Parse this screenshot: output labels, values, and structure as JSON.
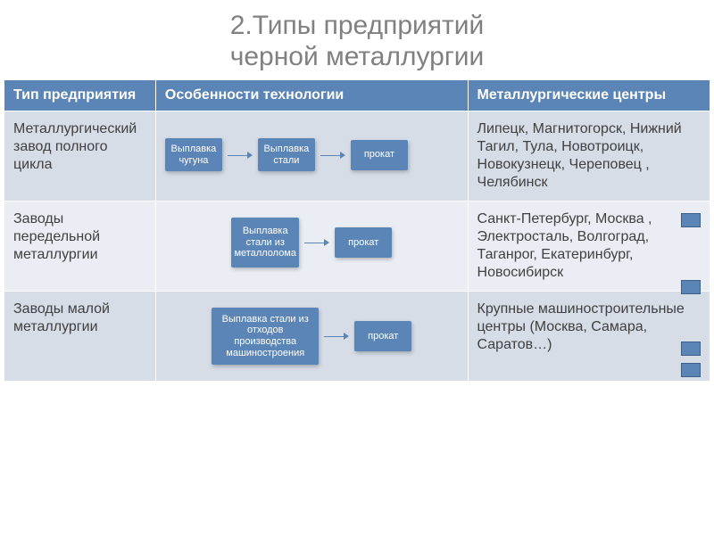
{
  "title_line1": "2.Типы предприятий",
  "title_line2": "черной металлургии",
  "colors": {
    "header_bg": "#5b85b6",
    "header_fg": "#ffffff",
    "node_bg": "#5b85b6",
    "node_fg": "#ffffff",
    "arrow": "#5b85b6",
    "row_alt_bg": [
      "#d6dde7",
      "#eaeef4",
      "#d6dde7"
    ],
    "title_color": "#808080",
    "text_color": "#404040",
    "marker_bg": "#5b85b6"
  },
  "fonts": {
    "title_size_pt": 22,
    "header_size_pt": 12,
    "body_size_pt": 12,
    "node_size_pt": 8
  },
  "columns": {
    "c1": "Тип предприятия",
    "c2": "Особенности технологии",
    "c3": "Металлургические центры"
  },
  "rows": [
    {
      "type_label": "Металлургический завод полного цикла",
      "centers_text": "Липецк, Магнитогорск, Нижний Тагил,    Тула, Новотроицк, Новокузнецк, Череповец , Челябинск",
      "flow": {
        "layout": "horizontal",
        "nodes": [
          {
            "label": "Выплавка чугуна",
            "size": "small"
          },
          {
            "label": "Выплавка стали",
            "size": "small"
          },
          {
            "label": "прокат",
            "size": "small"
          }
        ],
        "edges": [
          [
            0,
            1
          ],
          [
            1,
            2
          ]
        ]
      },
      "markers": [
        "m1"
      ]
    },
    {
      "type_label": "Заводы передельной металлургии",
      "centers_text": "Санкт-Петербург, Москва , Электросталь, Волгоград,   Таганрог, Екатеринбург, Новосибирск",
      "flow": {
        "layout": "horizontal",
        "nodes": [
          {
            "label": "Выплавка стали из металлолома",
            "size": "med"
          },
          {
            "label": "прокат",
            "size": "small"
          }
        ],
        "edges": [
          [
            0,
            1
          ]
        ]
      },
      "markers": [
        "m2"
      ]
    },
    {
      "type_label": "Заводы малой металлургии",
      "centers_text": "Крупные машиностроительные центры (Москва, Самара, Саратов…)",
      "flow": {
        "layout": "horizontal",
        "nodes": [
          {
            "label": "Выплавка стали из отходов производства машиностроения",
            "size": "big"
          },
          {
            "label": "прокат",
            "size": "small"
          }
        ],
        "edges": [
          [
            0,
            1
          ]
        ]
      },
      "markers": [
        "m3",
        "m4"
      ]
    }
  ]
}
